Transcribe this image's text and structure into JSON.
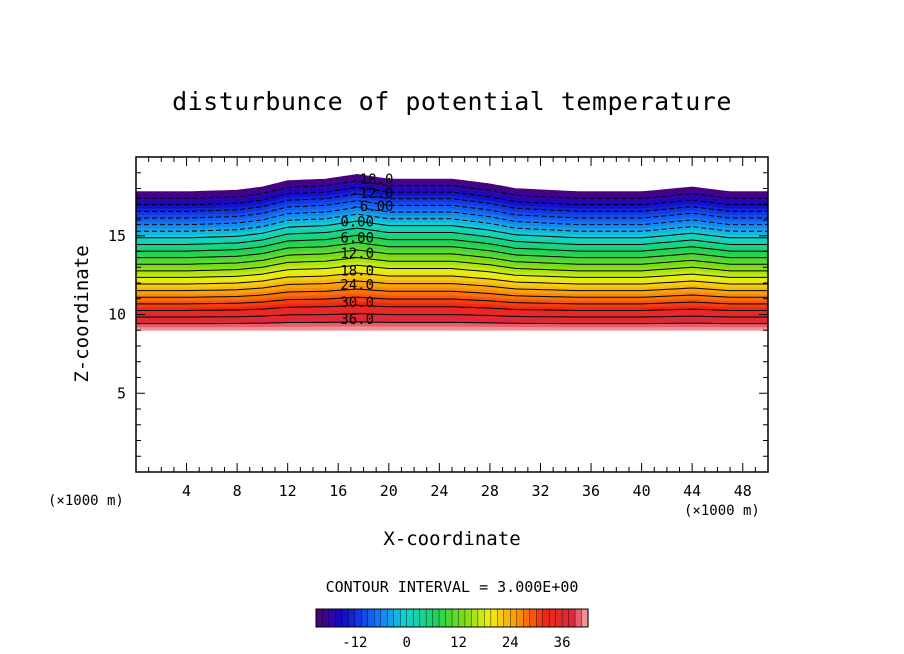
{
  "chart_data": {
    "type": "contour",
    "title": "disturbunce of potential temperature",
    "xlabel": "X-coordinate",
    "ylabel": "Z-coordinate",
    "x_unit": "(×1000 m)",
    "y_unit": "(×1000 m)",
    "xlim": [
      0,
      50
    ],
    "ylim": [
      0,
      20
    ],
    "x_ticks": [
      "4",
      "8",
      "12",
      "16",
      "20",
      "24",
      "28",
      "32",
      "36",
      "40",
      "44",
      "48"
    ],
    "y_ticks": [
      "5",
      "10",
      "15"
    ],
    "contour_interval_text": "CONTOUR INTERVAL = 3.000E+00",
    "contour_interval": 3.0,
    "negative_contours": "dashed",
    "field_top_z": [
      {
        "x": 0,
        "z": 17.8
      },
      {
        "x": 4,
        "z": 17.8
      },
      {
        "x": 8,
        "z": 17.9
      },
      {
        "x": 10,
        "z": 18.1
      },
      {
        "x": 12,
        "z": 18.5
      },
      {
        "x": 15,
        "z": 18.6
      },
      {
        "x": 17.5,
        "z": 18.9
      },
      {
        "x": 20,
        "z": 18.6
      },
      {
        "x": 25,
        "z": 18.6
      },
      {
        "x": 28,
        "z": 18.3
      },
      {
        "x": 30,
        "z": 18.0
      },
      {
        "x": 35,
        "z": 17.8
      },
      {
        "x": 40,
        "z": 17.8
      },
      {
        "x": 44,
        "z": 18.1
      },
      {
        "x": 47,
        "z": 17.8
      },
      {
        "x": 50,
        "z": 17.8
      }
    ],
    "field_bottom_z": 9.0,
    "contour_labels": [
      {
        "text": "-18.0",
        "x": 18.7,
        "z": 18.6
      },
      {
        "text": "-12.0",
        "x": 18.7,
        "z": 17.7
      },
      {
        "text": "-6.00",
        "x": 18.7,
        "z": 16.9
      },
      {
        "text": "0.00",
        "x": 17.5,
        "z": 15.9
      },
      {
        "text": "6.00",
        "x": 17.5,
        "z": 14.9
      },
      {
        "text": "12.0",
        "x": 17.5,
        "z": 13.9
      },
      {
        "text": "18.0",
        "x": 17.5,
        "z": 12.8
      },
      {
        "text": "24.0",
        "x": 17.5,
        "z": 11.9
      },
      {
        "text": "30.0",
        "x": 17.5,
        "z": 10.8
      },
      {
        "text": "36.0",
        "x": 17.5,
        "z": 9.7
      }
    ],
    "colorbar": {
      "ticks": [
        "-12",
        "0",
        "12",
        "24",
        "36"
      ],
      "range": [
        -21,
        42
      ]
    },
    "grid": false,
    "legend": "colorbar bottom-center"
  }
}
